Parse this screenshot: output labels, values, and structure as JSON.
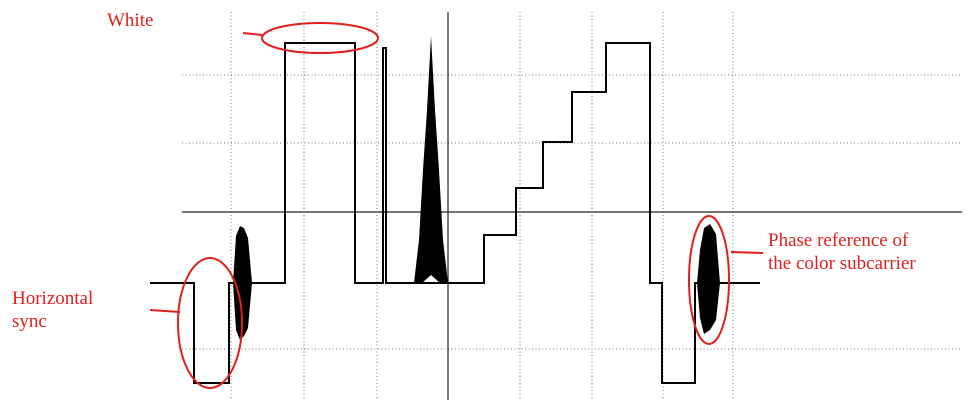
{
  "annotations": {
    "white": "White",
    "horizontal_sync": [
      "Horizontal",
      "sync"
    ],
    "phase_reference": [
      "Phase reference of",
      "the color subcarrier"
    ]
  },
  "colors": {
    "annotation": "#e0201e",
    "trace": "#000000",
    "graticule": "#7a7a7a"
  }
}
